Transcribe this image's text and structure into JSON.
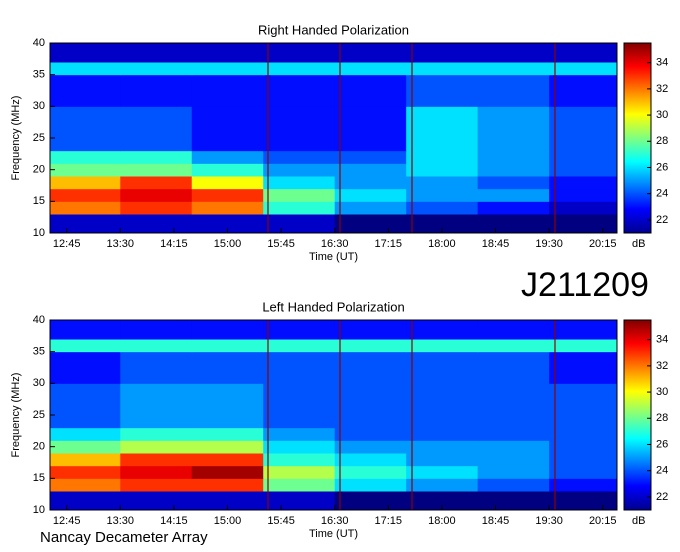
{
  "chart_data": [
    {
      "type": "heatmap",
      "title": "Right Handed Polarization",
      "xlabel": "Time (UT)",
      "ylabel": "Frequency (MHz)",
      "xlim": [
        "12:31",
        "20:27"
      ],
      "xticks": [
        "12:45",
        "13:30",
        "14:15",
        "15:00",
        "15:45",
        "16:30",
        "17:15",
        "18:00",
        "18:45",
        "19:30",
        "20:15"
      ],
      "ylim": [
        10,
        40
      ],
      "yticks": [
        10,
        15,
        20,
        25,
        30,
        35,
        40
      ],
      "x_bins": [
        "12:31",
        "13:30",
        "14:30",
        "15:30",
        "16:30",
        "17:30",
        "18:30",
        "19:30",
        "20:27"
      ],
      "y_bins": [
        10,
        13,
        15,
        17,
        19,
        21,
        23,
        30,
        35,
        37,
        40
      ],
      "z": [
        [
          22,
          22,
          22,
          22,
          21,
          21,
          21,
          21
        ],
        [
          32,
          33,
          32,
          27,
          25,
          24,
          23,
          22
        ],
        [
          33,
          34,
          33,
          28,
          26,
          25,
          25,
          23
        ],
        [
          31,
          33,
          30,
          26,
          25,
          25,
          24,
          23
        ],
        [
          28,
          28,
          27,
          25,
          25,
          26,
          25,
          24
        ],
        [
          27,
          27,
          25,
          24,
          24,
          26,
          25,
          24
        ],
        [
          24,
          24,
          23,
          23,
          23,
          26,
          25,
          24
        ],
        [
          23,
          23,
          23,
          23,
          23,
          24,
          24,
          23
        ],
        [
          26,
          26,
          26,
          26,
          26,
          26,
          26,
          26
        ],
        [
          22,
          22,
          22,
          22,
          22,
          22,
          22,
          22
        ]
      ],
      "colormap": "jet",
      "clim": [
        21,
        35.5
      ],
      "cticks": [
        22,
        24,
        26,
        28,
        30,
        32,
        34
      ],
      "clabel": "dB"
    },
    {
      "type": "heatmap",
      "title": "Left Handed Polarization",
      "xlabel": "Time (UT)",
      "ylabel": "Frequency (MHz)",
      "xlim": [
        "12:31",
        "20:27"
      ],
      "xticks": [
        "12:45",
        "13:30",
        "14:15",
        "15:00",
        "15:45",
        "16:30",
        "17:15",
        "18:00",
        "18:45",
        "19:30",
        "20:15"
      ],
      "ylim": [
        10,
        40
      ],
      "yticks": [
        10,
        15,
        20,
        25,
        30,
        35,
        40
      ],
      "x_bins": [
        "12:31",
        "13:30",
        "14:30",
        "15:30",
        "16:30",
        "17:30",
        "18:30",
        "19:30",
        "20:27"
      ],
      "y_bins": [
        10,
        13,
        15,
        17,
        19,
        21,
        23,
        30,
        35,
        37,
        40
      ],
      "z": [
        [
          22,
          22,
          22,
          22,
          21,
          21,
          21,
          21
        ],
        [
          32,
          33,
          33,
          28,
          26,
          25,
          24,
          23
        ],
        [
          33,
          34,
          35,
          29,
          27,
          26,
          25,
          24
        ],
        [
          31,
          33,
          33,
          27,
          26,
          25,
          25,
          24
        ],
        [
          28,
          29,
          29,
          26,
          25,
          25,
          25,
          24
        ],
        [
          26,
          27,
          27,
          25,
          24,
          24,
          24,
          24
        ],
        [
          24,
          25,
          25,
          24,
          24,
          24,
          24,
          24
        ],
        [
          23,
          24,
          24,
          24,
          24,
          24,
          24,
          23
        ],
        [
          27,
          27,
          27,
          27,
          27,
          27,
          27,
          27
        ],
        [
          23,
          23,
          23,
          23,
          23,
          23,
          23,
          23
        ]
      ],
      "colormap": "jet",
      "clim": [
        21,
        35.5
      ],
      "cticks": [
        22,
        24,
        26,
        28,
        30,
        32,
        34
      ],
      "clabel": "dB"
    }
  ],
  "header": "J211209",
  "footer": "Nancay Decameter Array"
}
